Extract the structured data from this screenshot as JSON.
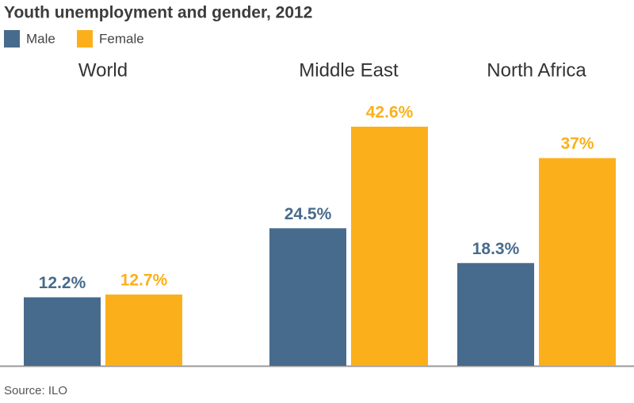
{
  "chart_data": {
    "type": "bar",
    "title": "Youth unemployment and gender, 2012",
    "categories": [
      "World",
      "Middle East",
      "North Africa"
    ],
    "series": [
      {
        "name": "Male",
        "color": "#476b8c",
        "values": [
          12.2,
          24.5,
          18.3
        ],
        "value_labels": [
          "12.2%",
          "24.5%",
          "18.3%"
        ]
      },
      {
        "name": "Female",
        "color": "#fbb01b",
        "values": [
          12.7,
          42.6,
          37
        ],
        "value_labels": [
          "12.7%",
          "42.6%",
          "37%"
        ]
      }
    ],
    "source": "Source: ILO"
  }
}
